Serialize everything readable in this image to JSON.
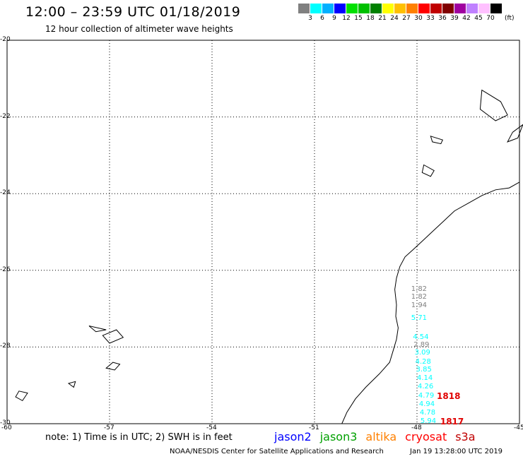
{
  "header": {
    "title": "12:00 – 23:59 UTC 01/18/2019",
    "subtitle": "12 hour collection of altimeter wave heights"
  },
  "legend": {
    "colors": [
      "#808080",
      "#00ffff",
      "#00b0ff",
      "#0000ff",
      "#00e000",
      "#00c000",
      "#008000",
      "#ffff00",
      "#ffc000",
      "#ff8000",
      "#ff0000",
      "#c00000",
      "#800000",
      "#a000a0",
      "#c080ff",
      "#ffc0ff",
      "#000000"
    ],
    "labels": [
      "3",
      "6",
      "9",
      "12",
      "15",
      "18",
      "21",
      "24",
      "27",
      "30",
      "33",
      "36",
      "39",
      "42",
      "45",
      "70"
    ],
    "unit": "(ft)"
  },
  "axes": {
    "lon_min": -60,
    "lon_max": -45,
    "lat_min": -30,
    "lat_max": -20,
    "lon_ticks": [
      "-60",
      "-57",
      "-54",
      "-51",
      "-48",
      "-45"
    ],
    "lat_ticks": [
      "-20",
      "-22",
      "-24",
      "-26",
      "-28",
      "-30"
    ]
  },
  "wave_heights": [
    {
      "value": "1.82",
      "color": "#808080",
      "lon": -48.17,
      "lat": -26.5
    },
    {
      "value": "1.82",
      "color": "#808080",
      "lon": -48.17,
      "lat": -26.7
    },
    {
      "value": "1.94",
      "color": "#808080",
      "lon": -48.17,
      "lat": -26.93
    },
    {
      "value": "5.71",
      "color": "#00ffff",
      "lon": -48.17,
      "lat": -27.25
    },
    {
      "value": "4.54",
      "color": "#00ffff",
      "lon": -48.12,
      "lat": -27.75
    },
    {
      "value": "2.89",
      "color": "#808080",
      "lon": -48.1,
      "lat": -27.95
    },
    {
      "value": "3.09",
      "color": "#00ffff",
      "lon": -48.07,
      "lat": -28.16
    },
    {
      "value": "4.28",
      "color": "#00ffff",
      "lon": -48.05,
      "lat": -28.39
    },
    {
      "value": "3.85",
      "color": "#00ffff",
      "lon": -48.03,
      "lat": -28.6
    },
    {
      "value": "4.14",
      "color": "#00ffff",
      "lon": -48.0,
      "lat": -28.83
    },
    {
      "value": "4.26",
      "color": "#00ffff",
      "lon": -47.98,
      "lat": -29.05
    },
    {
      "value": "4.79",
      "color": "#00ffff",
      "lon": -47.96,
      "lat": -29.28
    },
    {
      "value": "4.94",
      "color": "#00ffff",
      "lon": -47.94,
      "lat": -29.5
    },
    {
      "value": "4.78",
      "color": "#00ffff",
      "lon": -47.92,
      "lat": -29.73
    },
    {
      "value": "5.94",
      "color": "#00ffff",
      "lon": -47.9,
      "lat": -29.95
    }
  ],
  "pass_labels": [
    {
      "value": "1818",
      "lon": -47.42,
      "lat": -29.28
    },
    {
      "value": "1817",
      "lon": -47.32,
      "lat": -29.95
    }
  ],
  "coastline": [
    [
      -45.0,
      -23.7
    ],
    [
      -45.3,
      -23.85
    ],
    [
      -45.7,
      -23.9
    ],
    [
      -46.1,
      -24.05
    ],
    [
      -46.5,
      -24.25
    ],
    [
      -46.9,
      -24.45
    ],
    [
      -47.2,
      -24.7
    ],
    [
      -47.5,
      -24.95
    ],
    [
      -47.8,
      -25.2
    ],
    [
      -48.1,
      -25.45
    ],
    [
      -48.35,
      -25.65
    ],
    [
      -48.5,
      -25.9
    ],
    [
      -48.6,
      -26.2
    ],
    [
      -48.65,
      -26.5
    ],
    [
      -48.6,
      -26.9
    ],
    [
      -48.62,
      -27.2
    ],
    [
      -48.55,
      -27.5
    ],
    [
      -48.6,
      -27.8
    ],
    [
      -48.7,
      -28.1
    ],
    [
      -48.8,
      -28.4
    ],
    [
      -49.1,
      -28.7
    ],
    [
      -49.5,
      -29.05
    ],
    [
      -49.8,
      -29.35
    ],
    [
      -50.05,
      -29.7
    ],
    [
      -50.2,
      -30.0
    ]
  ],
  "islands": [
    [
      [
        -45.2,
        -22.4
      ],
      [
        -44.9,
        -22.2
      ],
      [
        -45.05,
        -22.55
      ],
      [
        -45.35,
        -22.65
      ],
      [
        -45.2,
        -22.4
      ]
    ],
    [
      [
        -47.6,
        -22.5
      ],
      [
        -47.25,
        -22.6
      ],
      [
        -47.3,
        -22.7
      ],
      [
        -47.55,
        -22.65
      ],
      [
        -47.6,
        -22.5
      ]
    ],
    [
      [
        -47.8,
        -23.25
      ],
      [
        -47.5,
        -23.4
      ],
      [
        -47.6,
        -23.55
      ],
      [
        -47.85,
        -23.45
      ],
      [
        -47.8,
        -23.25
      ]
    ],
    [
      [
        -46.1,
        -21.3
      ],
      [
        -45.55,
        -21.6
      ],
      [
        -45.35,
        -21.95
      ],
      [
        -45.7,
        -22.1
      ],
      [
        -46.15,
        -21.8
      ],
      [
        -46.1,
        -21.3
      ]
    ],
    [
      [
        -57.2,
        -27.7
      ],
      [
        -56.8,
        -27.55
      ],
      [
        -56.6,
        -27.75
      ],
      [
        -57.0,
        -27.9
      ],
      [
        -57.2,
        -27.7
      ]
    ],
    [
      [
        -57.6,
        -27.45
      ],
      [
        -57.1,
        -27.55
      ],
      [
        -57.4,
        -27.6
      ],
      [
        -57.6,
        -27.45
      ]
    ],
    [
      [
        -56.9,
        -28.4
      ],
      [
        -56.7,
        -28.45
      ],
      [
        -56.85,
        -28.6
      ],
      [
        -57.1,
        -28.55
      ],
      [
        -56.9,
        -28.4
      ]
    ],
    [
      [
        -59.65,
        -29.15
      ],
      [
        -59.4,
        -29.2
      ],
      [
        -59.55,
        -29.4
      ],
      [
        -59.75,
        -29.3
      ],
      [
        -59.65,
        -29.15
      ]
    ],
    [
      [
        -58.2,
        -28.95
      ],
      [
        -58.0,
        -28.9
      ],
      [
        -58.05,
        -29.05
      ],
      [
        -58.2,
        -28.95
      ]
    ]
  ],
  "footer": {
    "note": "note: 1) Time is in UTC; 2) SWH is in feet",
    "credit": "NOAA/NESDIS Center for Satellite Applications and Research",
    "timestamp": "Jan 19 13:28:00 UTC 2019"
  },
  "satellites": [
    {
      "name": "jason2",
      "color": "#0000ff"
    },
    {
      "name": "jason3",
      "color": "#00a000"
    },
    {
      "name": "altika",
      "color": "#ff8000"
    },
    {
      "name": "cryosat",
      "color": "#ff0000"
    },
    {
      "name": "s3a",
      "color": "#c00000"
    }
  ]
}
